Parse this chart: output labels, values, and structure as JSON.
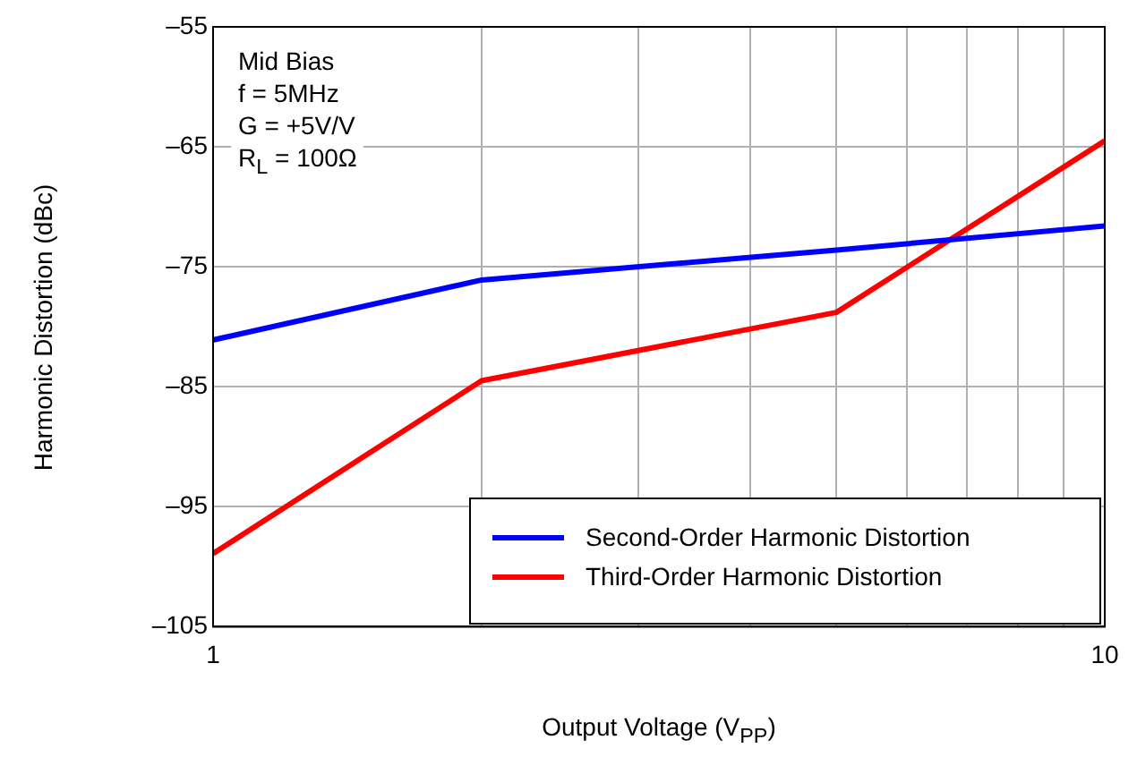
{
  "chart_data": {
    "type": "line",
    "xlabel": "Output Voltage (V$_{PP}$)",
    "ylabel": "Harmonic Distortion (dBc)",
    "annotations": [
      "Mid Bias",
      "f = 5MHz",
      "G = +5V/V",
      "R$_{L}$ = 100Ω"
    ],
    "x": [
      1,
      2,
      5,
      10
    ],
    "series": [
      {
        "name": "Second-Order Harmonic Distortion",
        "color": "#0000ff",
        "values": [
          -81.1,
          -76.1,
          -73.6,
          -71.6
        ]
      },
      {
        "name": "Third-Order Harmonic Distortion",
        "color": "#ff0000",
        "values": [
          -98.9,
          -84.5,
          -78.8,
          -64.5
        ]
      }
    ],
    "log": "x",
    "xlim": [
      1,
      10
    ],
    "ylim": [
      -105,
      -55
    ],
    "xticks": [
      1,
      {
        "value": 2,
        "label": null
      },
      {
        "value": 3,
        "label": null
      },
      {
        "value": 4,
        "label": null
      },
      {
        "value": 5,
        "label": null
      },
      {
        "value": 6,
        "label": null
      },
      {
        "value": 7,
        "label": null
      },
      {
        "value": 8,
        "label": null
      },
      {
        "value": 9,
        "label": null
      },
      10
    ],
    "yticks": [
      {
        "value": -105,
        "label": "–105"
      },
      {
        "value": -95,
        "label": "–95"
      },
      {
        "value": -85,
        "label": "–85"
      },
      {
        "value": -75,
        "label": "–75"
      },
      {
        "value": -65,
        "label": "–65"
      },
      {
        "value": -55,
        "label": "–55"
      }
    ],
    "grid": true,
    "legend": "bottom right",
    "marker": "none",
    "line_style": "solid"
  }
}
